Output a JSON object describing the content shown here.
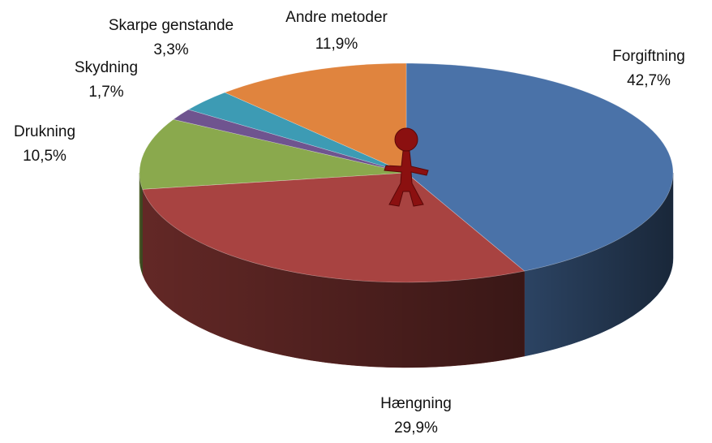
{
  "chart_data": {
    "type": "pie",
    "categories": [
      "Forgiftning",
      "Hængning",
      "Drukning",
      "Skydning",
      "Skarpe genstande",
      "Andre metoder"
    ],
    "values": [
      42.7,
      29.9,
      10.5,
      1.7,
      3.3,
      11.9
    ],
    "value_labels": [
      "42,7%",
      "29,9%",
      "10,5%",
      "1,7%",
      "3,3%",
      "11,9%"
    ],
    "colors": [
      "#4a72a8",
      "#a84341",
      "#8aa94d",
      "#6f548f",
      "#3d9bb4",
      "#e0843e"
    ]
  }
}
